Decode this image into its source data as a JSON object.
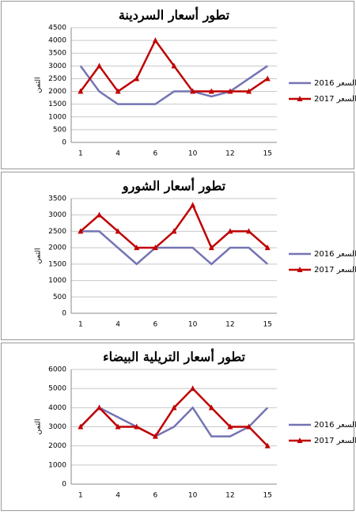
{
  "chart_data": [
    {
      "type": "line",
      "title": "تطور أسعار السردينة",
      "y_label": "الثمن",
      "categories": [
        "1",
        null,
        "4",
        null,
        "6",
        null,
        "10",
        null,
        "12",
        null,
        "15"
      ],
      "series": [
        {
          "name": "السعر 2016",
          "color": "#7474b4",
          "marker": "none",
          "values": [
            3000,
            2000,
            1500,
            1500,
            1500,
            2000,
            2000,
            1800,
            2000,
            2500,
            3000
          ]
        },
        {
          "name": "السعر 2017",
          "color": "#c00000",
          "marker": "triangle",
          "values": [
            2000,
            3000,
            2000,
            2500,
            4000,
            3000,
            2000,
            2000,
            2000,
            2000,
            2500
          ]
        }
      ],
      "ylim": [
        0,
        4500
      ],
      "yticks": [
        0,
        500,
        1000,
        1500,
        2000,
        2500,
        3000,
        3500,
        4000,
        4500
      ],
      "grid": true,
      "legend": "right"
    },
    {
      "type": "line",
      "title": "تطور أسعار الشورو",
      "y_label": "الثمن",
      "categories": [
        "1",
        null,
        "4",
        null,
        "6",
        null,
        "10",
        null,
        "12",
        null,
        "15"
      ],
      "series": [
        {
          "name": "السعر 2016",
          "color": "#7474b4",
          "marker": "none",
          "values": [
            2500,
            2500,
            2000,
            1500,
            2000,
            2000,
            2000,
            1500,
            2000,
            2000,
            1500
          ]
        },
        {
          "name": "السعر 2017",
          "color": "#c00000",
          "marker": "triangle",
          "values": [
            2500,
            3000,
            2500,
            2000,
            2000,
            2500,
            3300,
            2000,
            2500,
            2500,
            2000
          ]
        }
      ],
      "ylim": [
        0,
        3500
      ],
      "yticks": [
        0,
        500,
        1000,
        1500,
        2000,
        2500,
        3000,
        3500
      ],
      "grid": true,
      "legend": "right"
    },
    {
      "type": "line",
      "title": "تطور أسعار التريلية البيضاء",
      "y_label": "الثمن",
      "categories": [
        "1",
        null,
        "4",
        null,
        "6",
        null,
        "10",
        null,
        "12",
        null,
        "15"
      ],
      "series": [
        {
          "name": "السعر 2016",
          "color": "#7474b4",
          "marker": "none",
          "values": [
            3000,
            4000,
            3500,
            3000,
            2500,
            3000,
            4000,
            2500,
            2500,
            3000,
            4000
          ]
        },
        {
          "name": "السعر 2017",
          "color": "#c00000",
          "marker": "triangle",
          "values": [
            3000,
            4000,
            3000,
            3000,
            2500,
            4000,
            5000,
            4000,
            3000,
            3000,
            2000
          ]
        }
      ],
      "ylim": [
        0,
        6000
      ],
      "yticks": [
        0,
        1000,
        2000,
        3000,
        4000,
        5000,
        6000
      ],
      "grid": true,
      "legend": "right"
    }
  ]
}
